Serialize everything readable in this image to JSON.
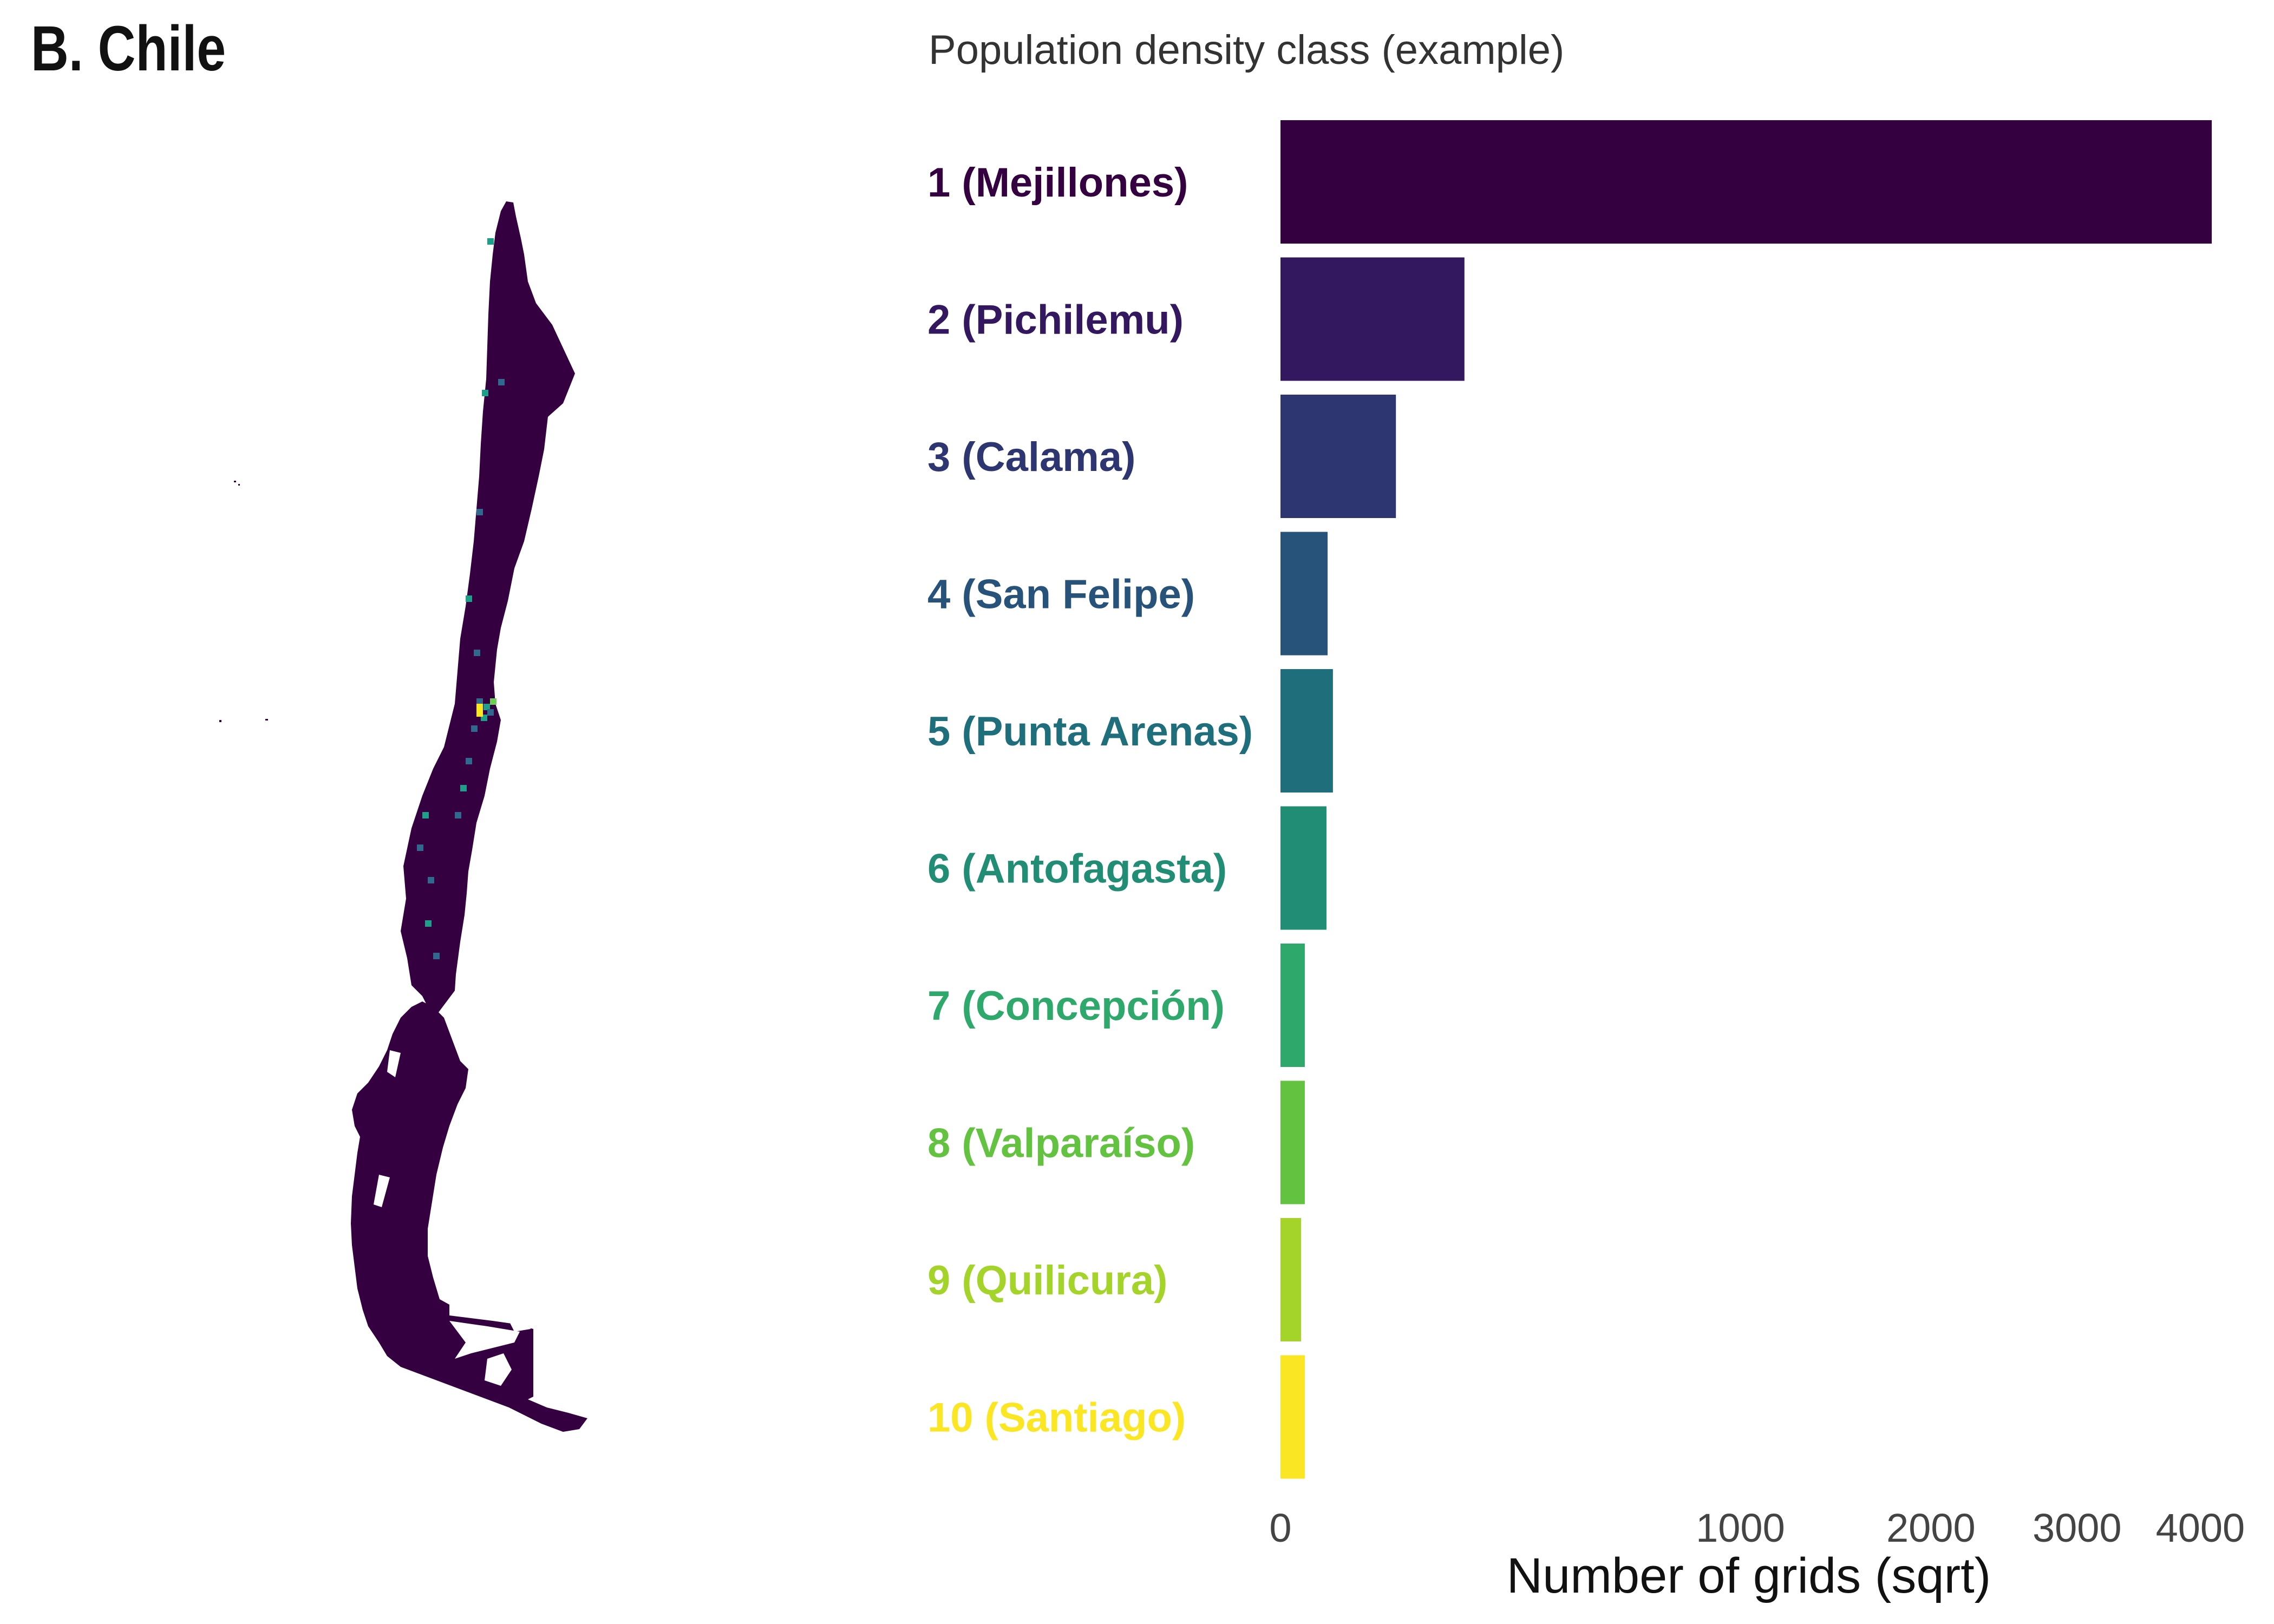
{
  "panel": {
    "title": "B. Chile"
  },
  "map": {
    "fill": "#35003f",
    "hotspot_colors": [
      "#1f9e89",
      "#6ece58",
      "#fde725",
      "#31688e"
    ]
  },
  "chart_data": {
    "type": "bar",
    "orientation": "horizontal",
    "title": "Population density class (example)",
    "xlabel": "Number of grids (sqrt)",
    "x_scale": "sqrt",
    "xlim": [
      0,
      4100
    ],
    "x_ticks": [
      0,
      1000,
      2000,
      3000,
      4000
    ],
    "categories": [
      "1 (Mejillones)",
      "2 (Pichilemu)",
      "3 (Calama)",
      "4 (San Felipe)",
      "5 (Punta Arenas)",
      "6 (Antofagasta)",
      "7 (Concepción)",
      "8 (Valparaíso)",
      "9 (Quilicura)",
      "10 (Santiago)"
    ],
    "values": [
      4100,
      160,
      63,
      10.5,
      13,
      10,
      2.8,
      2.8,
      2,
      2.8
    ],
    "colors": [
      "#35003f",
      "#33185f",
      "#2e3671",
      "#27527a",
      "#1f6e7b",
      "#228d75",
      "#2fa96b",
      "#63c23f",
      "#a4d42a",
      "#fae622"
    ],
    "grid": false,
    "legend": "none"
  }
}
